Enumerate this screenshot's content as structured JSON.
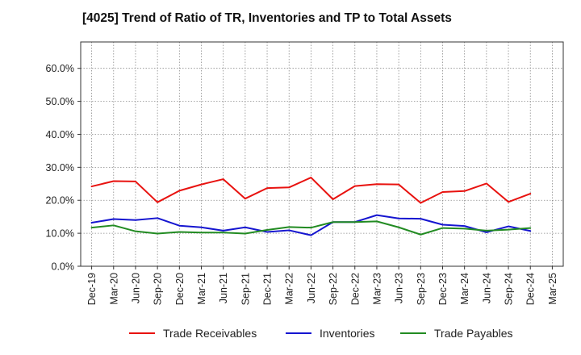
{
  "chart_data": {
    "type": "line",
    "title": "[4025]  Trend of Ratio of TR, Inventories and TP to Total Assets",
    "xlabel": "",
    "ylabel": "",
    "categories": [
      "Dec-19",
      "Mar-20",
      "Jun-20",
      "Sep-20",
      "Dec-20",
      "Mar-21",
      "Jun-21",
      "Sep-21",
      "Dec-21",
      "Mar-22",
      "Jun-22",
      "Sep-22",
      "Dec-22",
      "Mar-23",
      "Jun-23",
      "Sep-23",
      "Dec-23",
      "Mar-24",
      "Jun-24",
      "Sep-24",
      "Dec-24",
      "Mar-25"
    ],
    "x_tick_labels": [
      "Dec-19",
      "Mar-20",
      "Jun-20",
      "Sep-20",
      "Dec-20",
      "Mar-21",
      "Jun-21",
      "Sep-21",
      "Dec-21",
      "Mar-22",
      "Jun-22",
      "Sep-22",
      "Dec-22",
      "Mar-23",
      "Jun-23",
      "Sep-23",
      "Dec-23",
      "Mar-24",
      "Jun-24",
      "Sep-24",
      "Dec-24",
      "Mar-25"
    ],
    "y_ticks": [
      0,
      10,
      20,
      30,
      40,
      50,
      60
    ],
    "y_tick_labels": [
      "0.0%",
      "10.0%",
      "20.0%",
      "30.0%",
      "40.0%",
      "50.0%",
      "60.0%"
    ],
    "ylim": [
      0,
      68
    ],
    "grid": "on (dotted)",
    "legend_position": "bottom",
    "series": [
      {
        "name": "Trade Receivables",
        "color": "#e8120f",
        "values": [
          24.2,
          25.8,
          25.7,
          19.4,
          22.9,
          24.8,
          26.4,
          20.5,
          23.7,
          23.9,
          26.9,
          20.3,
          24.3,
          24.9,
          24.8,
          19.2,
          22.5,
          22.8,
          25.1,
          19.5,
          22.0,
          null
        ]
      },
      {
        "name": "Inventories",
        "color": "#1515d0",
        "values": [
          13.2,
          14.3,
          14.0,
          14.6,
          12.3,
          11.8,
          10.8,
          11.8,
          10.4,
          10.9,
          9.4,
          13.4,
          13.4,
          15.5,
          14.5,
          14.4,
          12.6,
          12.2,
          10.3,
          12.1,
          10.7,
          null
        ]
      },
      {
        "name": "Trade Payables",
        "color": "#228b22",
        "values": [
          11.7,
          12.4,
          10.6,
          9.9,
          10.4,
          10.2,
          10.2,
          9.9,
          11.0,
          11.9,
          11.7,
          13.4,
          13.4,
          13.6,
          11.8,
          9.6,
          11.6,
          11.4,
          10.8,
          11.1,
          11.6,
          null
        ]
      }
    ]
  }
}
